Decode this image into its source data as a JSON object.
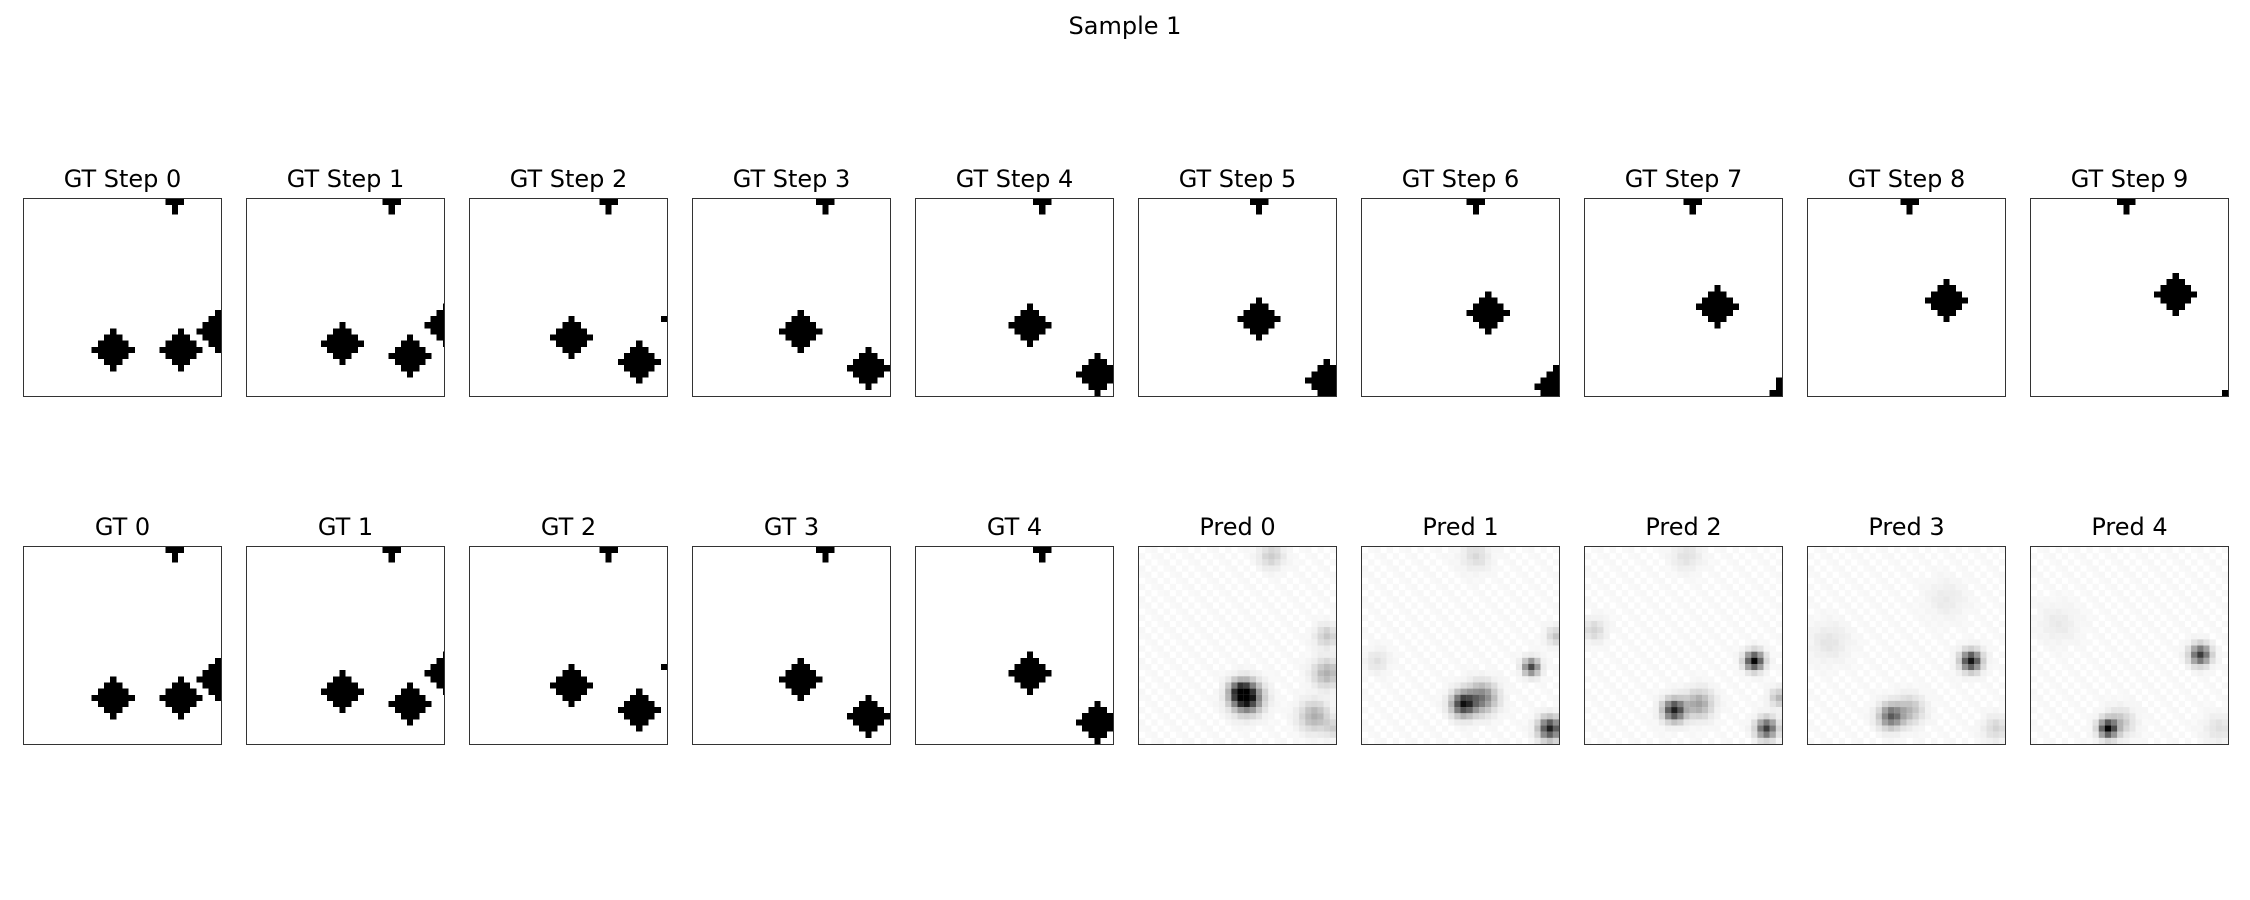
{
  "figure": {
    "title": "Sample 1"
  },
  "chart_data": {
    "type": "heatmap",
    "grid_size": 32,
    "colormap": "gray_r",
    "value_range": [
      0,
      1
    ],
    "panels": [
      {
        "title": "GT Step 0",
        "objects": [
          {
            "shape": "plus",
            "cx": 24.5,
            "cy": 0.5,
            "size": "small"
          },
          {
            "shape": "diamond",
            "cx": 14.5,
            "cy": 24.5
          },
          {
            "shape": "diamond",
            "cx": 25.5,
            "cy": 24.5
          },
          {
            "shape": "diamond",
            "cx": 31.5,
            "cy": 21.5
          }
        ]
      },
      {
        "title": "GT Step 1",
        "objects": [
          {
            "shape": "plus",
            "cx": 23.5,
            "cy": 0.5,
            "size": "small"
          },
          {
            "shape": "diamond",
            "cx": 15.5,
            "cy": 23.5
          },
          {
            "shape": "diamond",
            "cx": 26.5,
            "cy": 25.5
          },
          {
            "shape": "diamond",
            "cx": 32.3,
            "cy": 20.5
          }
        ]
      },
      {
        "title": "GT Step 2",
        "objects": [
          {
            "shape": "plus",
            "cx": 22.5,
            "cy": 0.5,
            "size": "small"
          },
          {
            "shape": "diamond",
            "cx": 16.5,
            "cy": 22.5
          },
          {
            "shape": "diamond",
            "cx": 27.5,
            "cy": 26.5
          },
          {
            "shape": "dot",
            "cx": 31.5,
            "cy": 19.5
          }
        ]
      },
      {
        "title": "GT Step 3",
        "objects": [
          {
            "shape": "plus",
            "cx": 21.5,
            "cy": 0.5,
            "size": "small"
          },
          {
            "shape": "diamond",
            "cx": 17.5,
            "cy": 21.5
          },
          {
            "shape": "diamond",
            "cx": 28.5,
            "cy": 27.5
          }
        ]
      },
      {
        "title": "GT Step 4",
        "objects": [
          {
            "shape": "plus",
            "cx": 20.5,
            "cy": 0.5,
            "size": "small"
          },
          {
            "shape": "diamond",
            "cx": 18.5,
            "cy": 20.5
          },
          {
            "shape": "diamond",
            "cx": 29.5,
            "cy": 28.5
          }
        ]
      },
      {
        "title": "GT Step 5",
        "objects": [
          {
            "shape": "plus",
            "cx": 19.5,
            "cy": 0.5,
            "size": "small"
          },
          {
            "shape": "diamond",
            "cx": 19.5,
            "cy": 19.5
          },
          {
            "shape": "diamond",
            "cx": 30.5,
            "cy": 29.5
          }
        ]
      },
      {
        "title": "GT Step 6",
        "objects": [
          {
            "shape": "plus",
            "cx": 18.5,
            "cy": 0.5,
            "size": "small"
          },
          {
            "shape": "diamond",
            "cx": 20.5,
            "cy": 18.5
          },
          {
            "shape": "diamond",
            "cx": 31.5,
            "cy": 30.5
          }
        ]
      },
      {
        "title": "GT Step 7",
        "objects": [
          {
            "shape": "plus",
            "cx": 17.5,
            "cy": 0.5,
            "size": "small"
          },
          {
            "shape": "diamond",
            "cx": 21.5,
            "cy": 17.5
          },
          {
            "shape": "corner",
            "cx": 31.5,
            "cy": 31.5
          }
        ]
      },
      {
        "title": "GT Step 8",
        "objects": [
          {
            "shape": "plus",
            "cx": 16.5,
            "cy": 0.5,
            "size": "small"
          },
          {
            "shape": "diamond",
            "cx": 22.5,
            "cy": 16.5
          }
        ]
      },
      {
        "title": "GT Step 9",
        "objects": [
          {
            "shape": "plus",
            "cx": 15.5,
            "cy": 0.5,
            "size": "small"
          },
          {
            "shape": "diamond",
            "cx": 23.5,
            "cy": 15.5
          },
          {
            "shape": "dot",
            "cx": 31.5,
            "cy": 31.5
          }
        ]
      },
      {
        "title": "GT 0",
        "objects": [
          {
            "shape": "plus",
            "cx": 24.5,
            "cy": 0.5,
            "size": "small"
          },
          {
            "shape": "diamond",
            "cx": 14.5,
            "cy": 24.5
          },
          {
            "shape": "diamond",
            "cx": 25.5,
            "cy": 24.5
          },
          {
            "shape": "diamond",
            "cx": 31.5,
            "cy": 21.5
          }
        ]
      },
      {
        "title": "GT 1",
        "objects": [
          {
            "shape": "plus",
            "cx": 23.5,
            "cy": 0.5,
            "size": "small"
          },
          {
            "shape": "diamond",
            "cx": 15.5,
            "cy": 23.5
          },
          {
            "shape": "diamond",
            "cx": 26.5,
            "cy": 25.5
          },
          {
            "shape": "diamond",
            "cx": 32.3,
            "cy": 20.5
          }
        ]
      },
      {
        "title": "GT 2",
        "objects": [
          {
            "shape": "plus",
            "cx": 22.5,
            "cy": 0.5,
            "size": "small"
          },
          {
            "shape": "diamond",
            "cx": 16.5,
            "cy": 22.5
          },
          {
            "shape": "diamond",
            "cx": 27.5,
            "cy": 26.5
          },
          {
            "shape": "dot",
            "cx": 31.5,
            "cy": 19.5
          }
        ]
      },
      {
        "title": "GT 3",
        "objects": [
          {
            "shape": "plus",
            "cx": 21.5,
            "cy": 0.5,
            "size": "small"
          },
          {
            "shape": "diamond",
            "cx": 17.5,
            "cy": 21.5
          },
          {
            "shape": "diamond",
            "cx": 28.5,
            "cy": 27.5
          }
        ]
      },
      {
        "title": "GT 4",
        "objects": [
          {
            "shape": "plus",
            "cx": 20.5,
            "cy": 0.5,
            "size": "small"
          },
          {
            "shape": "diamond",
            "cx": 18.5,
            "cy": 20.5
          },
          {
            "shape": "diamond",
            "cx": 29.5,
            "cy": 28.5
          }
        ]
      },
      {
        "title": "Pred 0",
        "blobs": [
          {
            "cx": 17,
            "cy": 24,
            "intensity": 0.95,
            "spread": 1.6
          },
          {
            "cx": 16,
            "cy": 23,
            "intensity": 0.6,
            "spread": 1.2
          },
          {
            "cx": 30,
            "cy": 20,
            "intensity": 0.3,
            "spread": 1.5
          },
          {
            "cx": 28,
            "cy": 27,
            "intensity": 0.3,
            "spread": 1.6
          },
          {
            "cx": 30,
            "cy": 14,
            "intensity": 0.2,
            "spread": 1.2
          },
          {
            "cx": 21,
            "cy": 1,
            "intensity": 0.18,
            "spread": 1.3
          },
          {
            "cx": 31,
            "cy": 29,
            "intensity": 0.15,
            "spread": 1.0
          }
        ]
      },
      {
        "title": "Pred 1",
        "blobs": [
          {
            "cx": 16,
            "cy": 25,
            "intensity": 0.85,
            "spread": 1.3
          },
          {
            "cx": 19,
            "cy": 24,
            "intensity": 0.5,
            "spread": 1.6
          },
          {
            "cx": 30,
            "cy": 29,
            "intensity": 0.85,
            "spread": 1.2
          },
          {
            "cx": 27,
            "cy": 19,
            "intensity": 0.7,
            "spread": 0.9
          },
          {
            "cx": 31,
            "cy": 14,
            "intensity": 0.2,
            "spread": 1.0
          },
          {
            "cx": 18,
            "cy": 1,
            "intensity": 0.12,
            "spread": 1.5
          },
          {
            "cx": 2,
            "cy": 18,
            "intensity": 0.1,
            "spread": 1.2
          }
        ]
      },
      {
        "title": "Pred 2",
        "blobs": [
          {
            "cx": 14,
            "cy": 26,
            "intensity": 0.85,
            "spread": 1.2
          },
          {
            "cx": 18,
            "cy": 25,
            "intensity": 0.35,
            "spread": 1.5
          },
          {
            "cx": 27,
            "cy": 18,
            "intensity": 0.95,
            "spread": 1.0
          },
          {
            "cx": 29,
            "cy": 29,
            "intensity": 0.75,
            "spread": 1.1
          },
          {
            "cx": 31,
            "cy": 24,
            "intensity": 0.25,
            "spread": 1.0
          },
          {
            "cx": 1,
            "cy": 13,
            "intensity": 0.15,
            "spread": 1.2
          },
          {
            "cx": 16,
            "cy": 1,
            "intensity": 0.1,
            "spread": 1.5
          }
        ]
      },
      {
        "title": "Pred 3",
        "blobs": [
          {
            "cx": 26,
            "cy": 18,
            "intensity": 0.9,
            "spread": 1.1
          },
          {
            "cx": 13,
            "cy": 27,
            "intensity": 0.6,
            "spread": 1.3
          },
          {
            "cx": 16,
            "cy": 26,
            "intensity": 0.25,
            "spread": 1.5
          },
          {
            "cx": 30,
            "cy": 29,
            "intensity": 0.15,
            "spread": 1.3
          },
          {
            "cx": 3,
            "cy": 15,
            "intensity": 0.08,
            "spread": 2.0
          },
          {
            "cx": 22,
            "cy": 8,
            "intensity": 0.06,
            "spread": 2.0
          }
        ]
      },
      {
        "title": "Pred 4",
        "blobs": [
          {
            "cx": 27,
            "cy": 17,
            "intensity": 0.75,
            "spread": 1.1
          },
          {
            "cx": 12,
            "cy": 29,
            "intensity": 0.9,
            "spread": 1.0
          },
          {
            "cx": 14,
            "cy": 28,
            "intensity": 0.2,
            "spread": 1.5
          },
          {
            "cx": 4,
            "cy": 12,
            "intensity": 0.06,
            "spread": 2.0
          },
          {
            "cx": 30,
            "cy": 29,
            "intensity": 0.1,
            "spread": 1.5
          }
        ]
      }
    ]
  }
}
